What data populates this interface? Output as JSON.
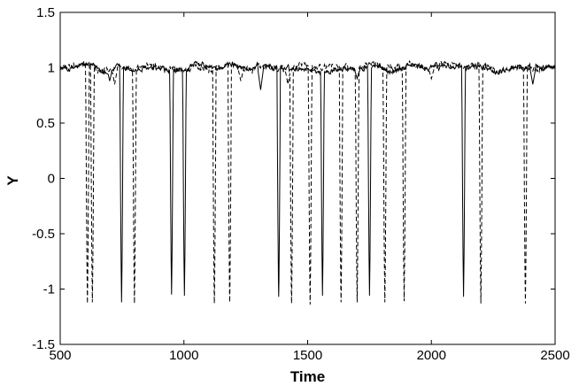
{
  "chart_data": {
    "type": "line",
    "title": "",
    "xlabel": "Time",
    "ylabel": "Y",
    "xlim": [
      500,
      2500
    ],
    "ylim": [
      -1.5,
      1.5
    ],
    "x_ticks": [
      500,
      1000,
      1500,
      2000,
      2500
    ],
    "x_tick_labels": [
      "500",
      "1000",
      "1500",
      "2000",
      "2500"
    ],
    "y_ticks": [
      -1.5,
      -1,
      -0.5,
      0,
      0.5,
      1,
      1.5
    ],
    "y_tick_labels": [
      "-1.5",
      "-1",
      "-0.5",
      "0",
      "0.5",
      "1",
      "1.5"
    ],
    "grid": false,
    "legend": "none",
    "baseline": 1.0,
    "colors": {
      "solid": "#000000",
      "dashed": "#000000"
    },
    "series": [
      {
        "style": "solid",
        "dips": [
          {
            "x": 748,
            "y": -1.12
          },
          {
            "x": 950,
            "y": -1.05
          },
          {
            "x": 1002,
            "y": -1.06
          },
          {
            "x": 1383,
            "y": -1.07
          },
          {
            "x": 1560,
            "y": -1.06
          },
          {
            "x": 1750,
            "y": -1.06
          },
          {
            "x": 2130,
            "y": -1.07
          }
        ],
        "shallow_dips": [
          {
            "x": 700,
            "y": 0.88
          },
          {
            "x": 1310,
            "y": 0.8
          },
          {
            "x": 1700,
            "y": 0.9
          },
          {
            "x": 2410,
            "y": 0.85
          }
        ]
      },
      {
        "style": "dashed",
        "dips": [
          {
            "x": 610,
            "y": -1.13
          },
          {
            "x": 630,
            "y": -1.12
          },
          {
            "x": 800,
            "y": -1.13
          },
          {
            "x": 1123,
            "y": -1.13
          },
          {
            "x": 1185,
            "y": -1.12
          },
          {
            "x": 1435,
            "y": -1.13
          },
          {
            "x": 1510,
            "y": -1.14
          },
          {
            "x": 1635,
            "y": -1.12
          },
          {
            "x": 1700,
            "y": -1.12
          },
          {
            "x": 1812,
            "y": -1.12
          },
          {
            "x": 1890,
            "y": -1.11
          },
          {
            "x": 2200,
            "y": -1.13
          },
          {
            "x": 2380,
            "y": -1.13
          }
        ],
        "shallow_dips": [
          {
            "x": 720,
            "y": 0.85
          },
          {
            "x": 1230,
            "y": 0.88
          },
          {
            "x": 1420,
            "y": 0.85
          },
          {
            "x": 2000,
            "y": 0.9
          }
        ]
      }
    ]
  }
}
